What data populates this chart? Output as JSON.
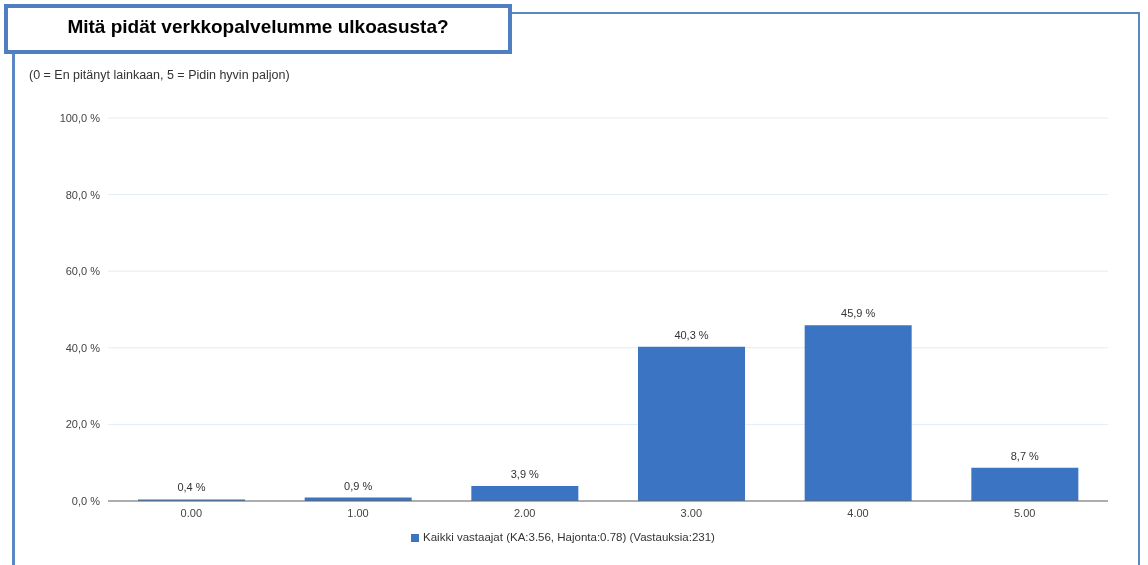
{
  "chart_data": {
    "type": "bar",
    "title": "Mitä pidät verkkopalvelumme ulkoasusta?",
    "subtitle": "(0 = En pitänyt lainkaan, 5 = Pidin hyvin paljon)",
    "categories": [
      "0.00",
      "1.00",
      "2.00",
      "3.00",
      "4.00",
      "5.00"
    ],
    "series": [
      {
        "name": "Kaikki vastaajat (KA:3.56, Hajonta:0.78) (Vastauksia:231)",
        "color": "#3a74c2",
        "values": [
          0.4,
          0.9,
          3.9,
          40.3,
          45.9,
          8.7
        ],
        "value_labels": [
          "0,4 %",
          "0,9 %",
          "3,9 %",
          "40,3 %",
          "45,9 %",
          "8,7 %"
        ]
      }
    ],
    "ylim": [
      0,
      100
    ],
    "yticks": [
      {
        "value": 0,
        "label": "0,0 %"
      },
      {
        "value": 20,
        "label": "20,0 %"
      },
      {
        "value": 40,
        "label": "40,0 %"
      },
      {
        "value": 60,
        "label": "60,0 %"
      },
      {
        "value": 80,
        "label": "80,0 %"
      },
      {
        "value": 100,
        "label": "100,0 %"
      }
    ],
    "grid": "y",
    "legend": "bottom"
  }
}
